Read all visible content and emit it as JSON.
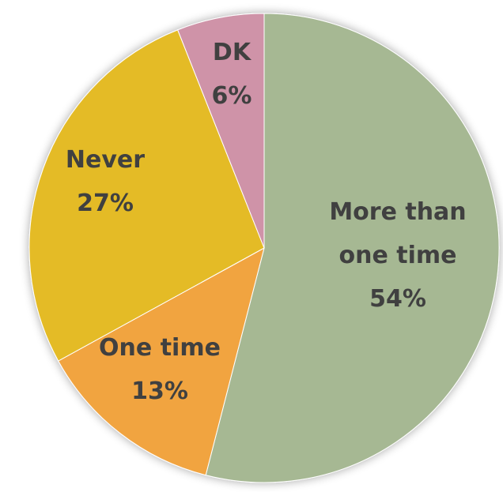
{
  "chart_data": {
    "type": "pie",
    "title": "",
    "slices": [
      {
        "label_lines": [
          "More than",
          "one time"
        ],
        "percent_label": "54%",
        "value": 54,
        "color": "#a6b893"
      },
      {
        "label_lines": [
          "One time"
        ],
        "percent_label": "13%",
        "value": 13,
        "color": "#f1a441"
      },
      {
        "label_lines": [
          "Never"
        ],
        "percent_label": "27%",
        "value": 27,
        "color": "#e4bb26"
      },
      {
        "label_lines": [
          "DK"
        ],
        "percent_label": "6%",
        "value": 6,
        "color": "#cf93a8"
      }
    ],
    "start_angle_deg": 0,
    "direction": "clockwise",
    "legend": "none"
  }
}
